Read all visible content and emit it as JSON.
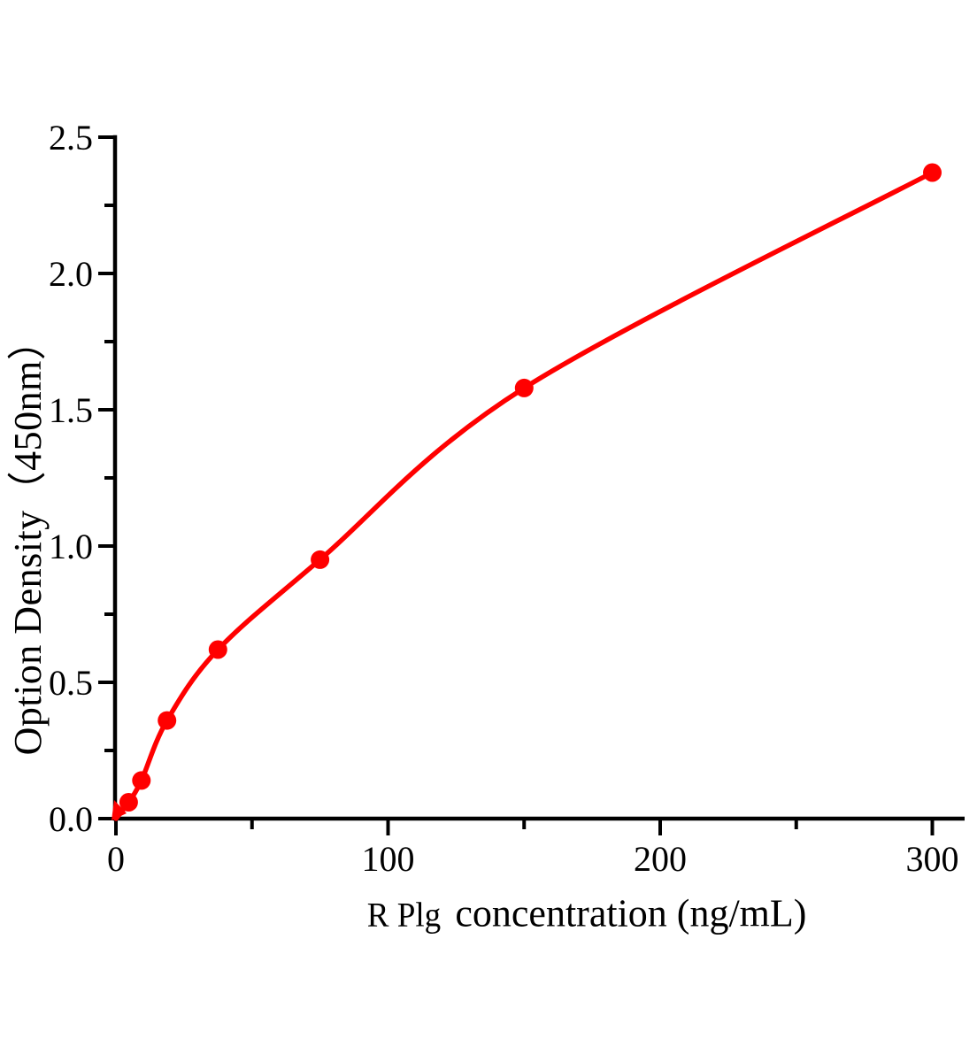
{
  "figure": {
    "background": "#ffffff",
    "axis_color": "#000000"
  },
  "chart_data": {
    "type": "scatter",
    "title": "",
    "xlabel": "R Plg concentration (ng/mL)",
    "xlabel_prefix": "R Plg",
    "xlabel_main": "concentration (ng/mL)",
    "ylabel": "Option Density（450nm）",
    "grid": false,
    "legend": false,
    "x_axis": {
      "min": 0,
      "max": 300,
      "major_ticks": [
        0,
        100,
        200,
        300
      ],
      "tick_labels": [
        "0",
        "100",
        "200",
        "300"
      ],
      "minor_ticks": [
        50,
        150,
        250
      ]
    },
    "y_axis": {
      "min": 0,
      "max": 2.5,
      "major_ticks": [
        0,
        0.5,
        1,
        1.5,
        2,
        2.5
      ],
      "tick_labels": [
        "0.0",
        "0.5",
        "1.0",
        "1.5",
        "2.0",
        "2.5"
      ],
      "minor_ticks": [
        0.25,
        0.75,
        1.25,
        1.75,
        2.25
      ]
    },
    "series": [
      {
        "marker": "circle",
        "color": "#ff0000",
        "curve_start": {
          "x": 0,
          "y": 0
        },
        "points": [
          {
            "x": 4.69,
            "y": 0.06
          },
          {
            "x": 9.38,
            "y": 0.14
          },
          {
            "x": 18.75,
            "y": 0.36
          },
          {
            "x": 37.5,
            "y": 0.62
          },
          {
            "x": 75,
            "y": 0.95
          },
          {
            "x": 150,
            "y": 1.58
          },
          {
            "x": 300,
            "y": 2.37
          }
        ]
      }
    ]
  }
}
